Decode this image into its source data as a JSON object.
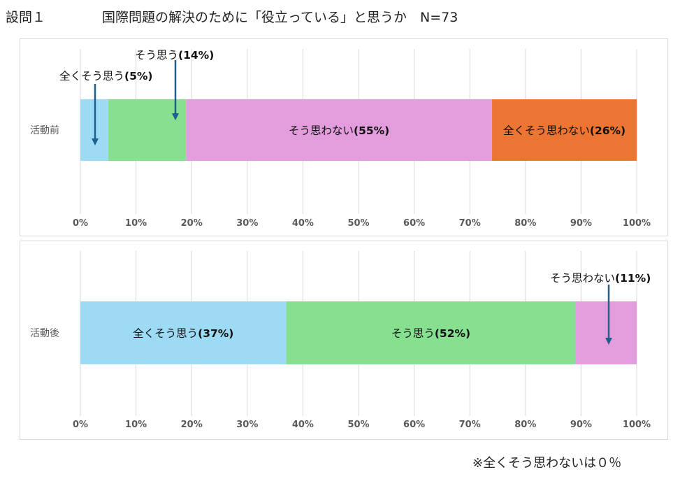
{
  "header": {
    "question_number": "設問１",
    "question_title": "国際問題の解決のために「役立っている」と思うか　N=73"
  },
  "chart_data": [
    {
      "type": "bar",
      "orientation": "horizontal-stacked",
      "row_label": "活動前",
      "xlim": [
        0,
        100
      ],
      "ticks": [
        "0%",
        "10%",
        "20%",
        "30%",
        "40%",
        "50%",
        "60%",
        "70%",
        "80%",
        "90%",
        "100%"
      ],
      "grid": true,
      "segments": [
        {
          "name": "全くそう思う",
          "value": 5,
          "label": "全くそう思う",
          "pct": "(5%)",
          "color": "#9ddbf5",
          "callout": true
        },
        {
          "name": "そう思う",
          "value": 14,
          "label": "そう思う",
          "pct": "(14%)",
          "color": "#86e08f",
          "callout": true
        },
        {
          "name": "そう思わない",
          "value": 55,
          "label": "そう思わない",
          "pct": "(55%)",
          "color": "#e39ddd",
          "callout": false
        },
        {
          "name": "全くそう思わない",
          "value": 26,
          "label": "全くそう思わない",
          "pct": "(26%)",
          "color": "#ec7533",
          "callout": false
        }
      ]
    },
    {
      "type": "bar",
      "orientation": "horizontal-stacked",
      "row_label": "活動後",
      "xlim": [
        0,
        100
      ],
      "ticks": [
        "0%",
        "10%",
        "20%",
        "30%",
        "40%",
        "50%",
        "60%",
        "70%",
        "80%",
        "90%",
        "100%"
      ],
      "grid": true,
      "segments": [
        {
          "name": "全くそう思う",
          "value": 37,
          "label": "全くそう思う",
          "pct": "(37%)",
          "color": "#9ddbf5",
          "callout": false
        },
        {
          "name": "そう思う",
          "value": 52,
          "label": "そう思う",
          "pct": "(52%)",
          "color": "#86e08f",
          "callout": false
        },
        {
          "name": "そう思わない",
          "value": 11,
          "label": "そう思わない",
          "pct": "(11%)",
          "color": "#e39ddd",
          "callout": true
        }
      ]
    }
  ],
  "footnote": "※全くそう思わないは０％",
  "arrow_color": "#1f5f8b"
}
